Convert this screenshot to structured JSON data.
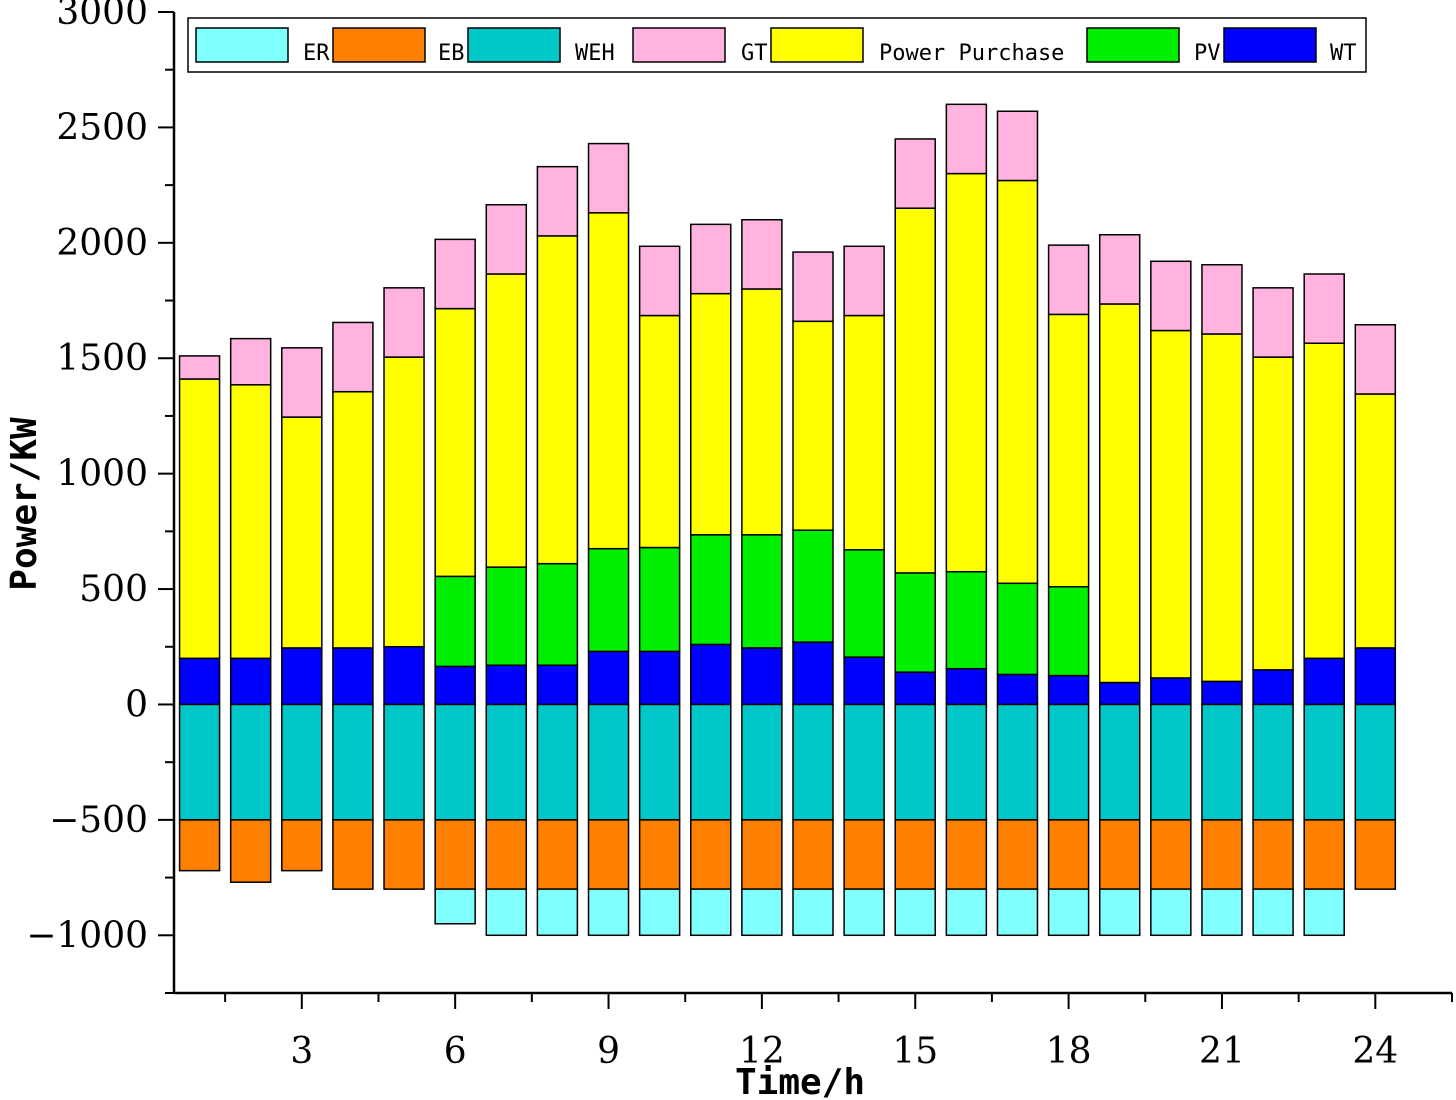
{
  "chart_data": {
    "type": "bar",
    "stacked": true,
    "title": "",
    "xlabel": "Time/h",
    "ylabel": "Power/KW",
    "ylim": [
      -1250,
      3000
    ],
    "xlim": [
      0.5,
      25.5
    ],
    "yticks": [
      -1000,
      -500,
      0,
      500,
      1000,
      1500,
      2000,
      2500,
      3000
    ],
    "xticks": [
      3,
      6,
      9,
      12,
      15,
      18,
      21,
      24
    ],
    "categories": [
      1,
      2,
      3,
      4,
      5,
      6,
      7,
      8,
      9,
      10,
      11,
      12,
      13,
      14,
      15,
      16,
      17,
      18,
      19,
      20,
      21,
      22,
      23,
      24
    ],
    "legend_position": "top",
    "positive_series": [
      {
        "name": "WT",
        "color": "#0000ff",
        "values": [
          200,
          200,
          245,
          245,
          250,
          165,
          170,
          170,
          230,
          230,
          260,
          245,
          270,
          205,
          140,
          155,
          130,
          125,
          95,
          115,
          100,
          150,
          200,
          245
        ]
      },
      {
        "name": "PV",
        "color": "#00ee00",
        "values": [
          0,
          0,
          0,
          0,
          0,
          390,
          425,
          440,
          445,
          450,
          475,
          490,
          485,
          465,
          430,
          420,
          395,
          385,
          0,
          0,
          0,
          0,
          0,
          0
        ]
      },
      {
        "name": "Power Purchase",
        "color": "#ffff00",
        "values": [
          1210,
          1185,
          1000,
          1110,
          1255,
          1160,
          1270,
          1420,
          1455,
          1005,
          1045,
          1065,
          905,
          1015,
          1580,
          1725,
          1745,
          1180,
          1640,
          1505,
          1505,
          1355,
          1365,
          1100
        ]
      },
      {
        "name": "GT",
        "color": "#ffb3de",
        "values": [
          100,
          200,
          300,
          300,
          300,
          300,
          300,
          300,
          300,
          300,
          300,
          300,
          300,
          300,
          300,
          300,
          300,
          300,
          300,
          300,
          300,
          300,
          300,
          300
        ]
      }
    ],
    "negative_series": [
      {
        "name": "WEH",
        "color": "#00c8c8",
        "values": [
          -500,
          -500,
          -500,
          -500,
          -500,
          -500,
          -500,
          -500,
          -500,
          -500,
          -500,
          -500,
          -500,
          -500,
          -500,
          -500,
          -500,
          -500,
          -500,
          -500,
          -500,
          -500,
          -500,
          -500
        ]
      },
      {
        "name": "EB",
        "color": "#ff8000",
        "values": [
          -220,
          -270,
          -220,
          -300,
          -300,
          -300,
          -300,
          -300,
          -300,
          -300,
          -300,
          -300,
          -300,
          -300,
          -300,
          -300,
          -300,
          -300,
          -300,
          -300,
          -300,
          -300,
          -300,
          -300
        ]
      },
      {
        "name": "ER",
        "color": "#80ffff",
        "values": [
          0,
          0,
          0,
          0,
          0,
          -150,
          -200,
          -200,
          -200,
          -200,
          -200,
          -200,
          -200,
          -200,
          -200,
          -200,
          -200,
          -200,
          -200,
          -200,
          -200,
          -200,
          -200,
          0
        ]
      }
    ],
    "legend": [
      {
        "name": "ER",
        "color": "#80ffff"
      },
      {
        "name": "EB",
        "color": "#ff8000"
      },
      {
        "name": "WEH",
        "color": "#00c8c8"
      },
      {
        "name": "GT",
        "color": "#ffb3de"
      },
      {
        "name": "Power Purchase",
        "color": "#ffff00"
      },
      {
        "name": "PV",
        "color": "#00ee00"
      },
      {
        "name": "WT",
        "color": "#0000ff"
      }
    ]
  }
}
